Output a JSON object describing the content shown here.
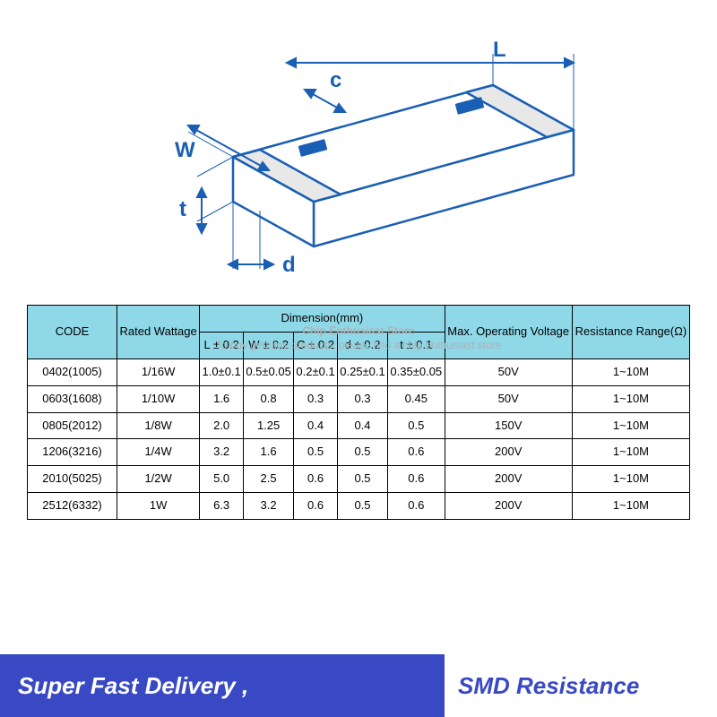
{
  "diagram": {
    "labels": {
      "L": "L",
      "W": "W",
      "t": "t",
      "c": "c",
      "d": "d"
    },
    "stroke_color": "#1a5fb4",
    "fill_color": "#ffffff",
    "stroke_width": 2
  },
  "table": {
    "header_bg": "#8fd8e8",
    "border_color": "#000000",
    "columns": {
      "code": "CODE",
      "wattage": "Rated Wattage",
      "dimension": "Dimension(mm)",
      "L": "L ± 0.2",
      "W": "W ± 0.2",
      "C": "C ± 0.2",
      "d": "d ± 0.2",
      "t": "t ± 0.1",
      "voltage": "Max. Operating Voltage",
      "range": "Resistance Range(Ω)"
    },
    "rows": [
      {
        "code": "0402(1005)",
        "wattage": "1/16W",
        "L": "1.0±0.1",
        "W": "0.5±0.05",
        "C": "0.2±0.1",
        "d": "0.25±0.1",
        "t": "0.35±0.05",
        "voltage": "50V",
        "range": "1~10M"
      },
      {
        "code": "0603(1608)",
        "wattage": "1/10W",
        "L": "1.6",
        "W": "0.8",
        "C": "0.3",
        "d": "0.3",
        "t": "0.45",
        "voltage": "50V",
        "range": "1~10M"
      },
      {
        "code": "0805(2012)",
        "wattage": "1/8W",
        "L": "2.0",
        "W": "1.25",
        "C": "0.4",
        "d": "0.4",
        "t": "0.5",
        "voltage": "150V",
        "range": "1~10M"
      },
      {
        "code": "1206(3216)",
        "wattage": "1/4W",
        "L": "3.2",
        "W": "1.6",
        "C": "0.5",
        "d": "0.5",
        "t": "0.6",
        "voltage": "200V",
        "range": "1~10M"
      },
      {
        "code": "2010(5025)",
        "wattage": "1/2W",
        "L": "5.0",
        "W": "2.5",
        "C": "0.6",
        "d": "0.5",
        "t": "0.6",
        "voltage": "200V",
        "range": "1~10M"
      },
      {
        "code": "2512(6332)",
        "wattage": "1W",
        "L": "6.3",
        "W": "3.2",
        "C": "0.6",
        "d": "0.5",
        "t": "0.6",
        "voltage": "200V",
        "range": "1~10M"
      }
    ]
  },
  "banner": {
    "left_text": "Super Fast Delivery ,",
    "right_text": "SMD Resistance",
    "left_bg": "#3949c4",
    "left_color": "#ffffff",
    "right_color": "#3949c4"
  },
  "watermark": {
    "line1": "Chip Enthusiast Store",
    "line2": "To buy genuine products, please find a chip enthusiast store"
  }
}
